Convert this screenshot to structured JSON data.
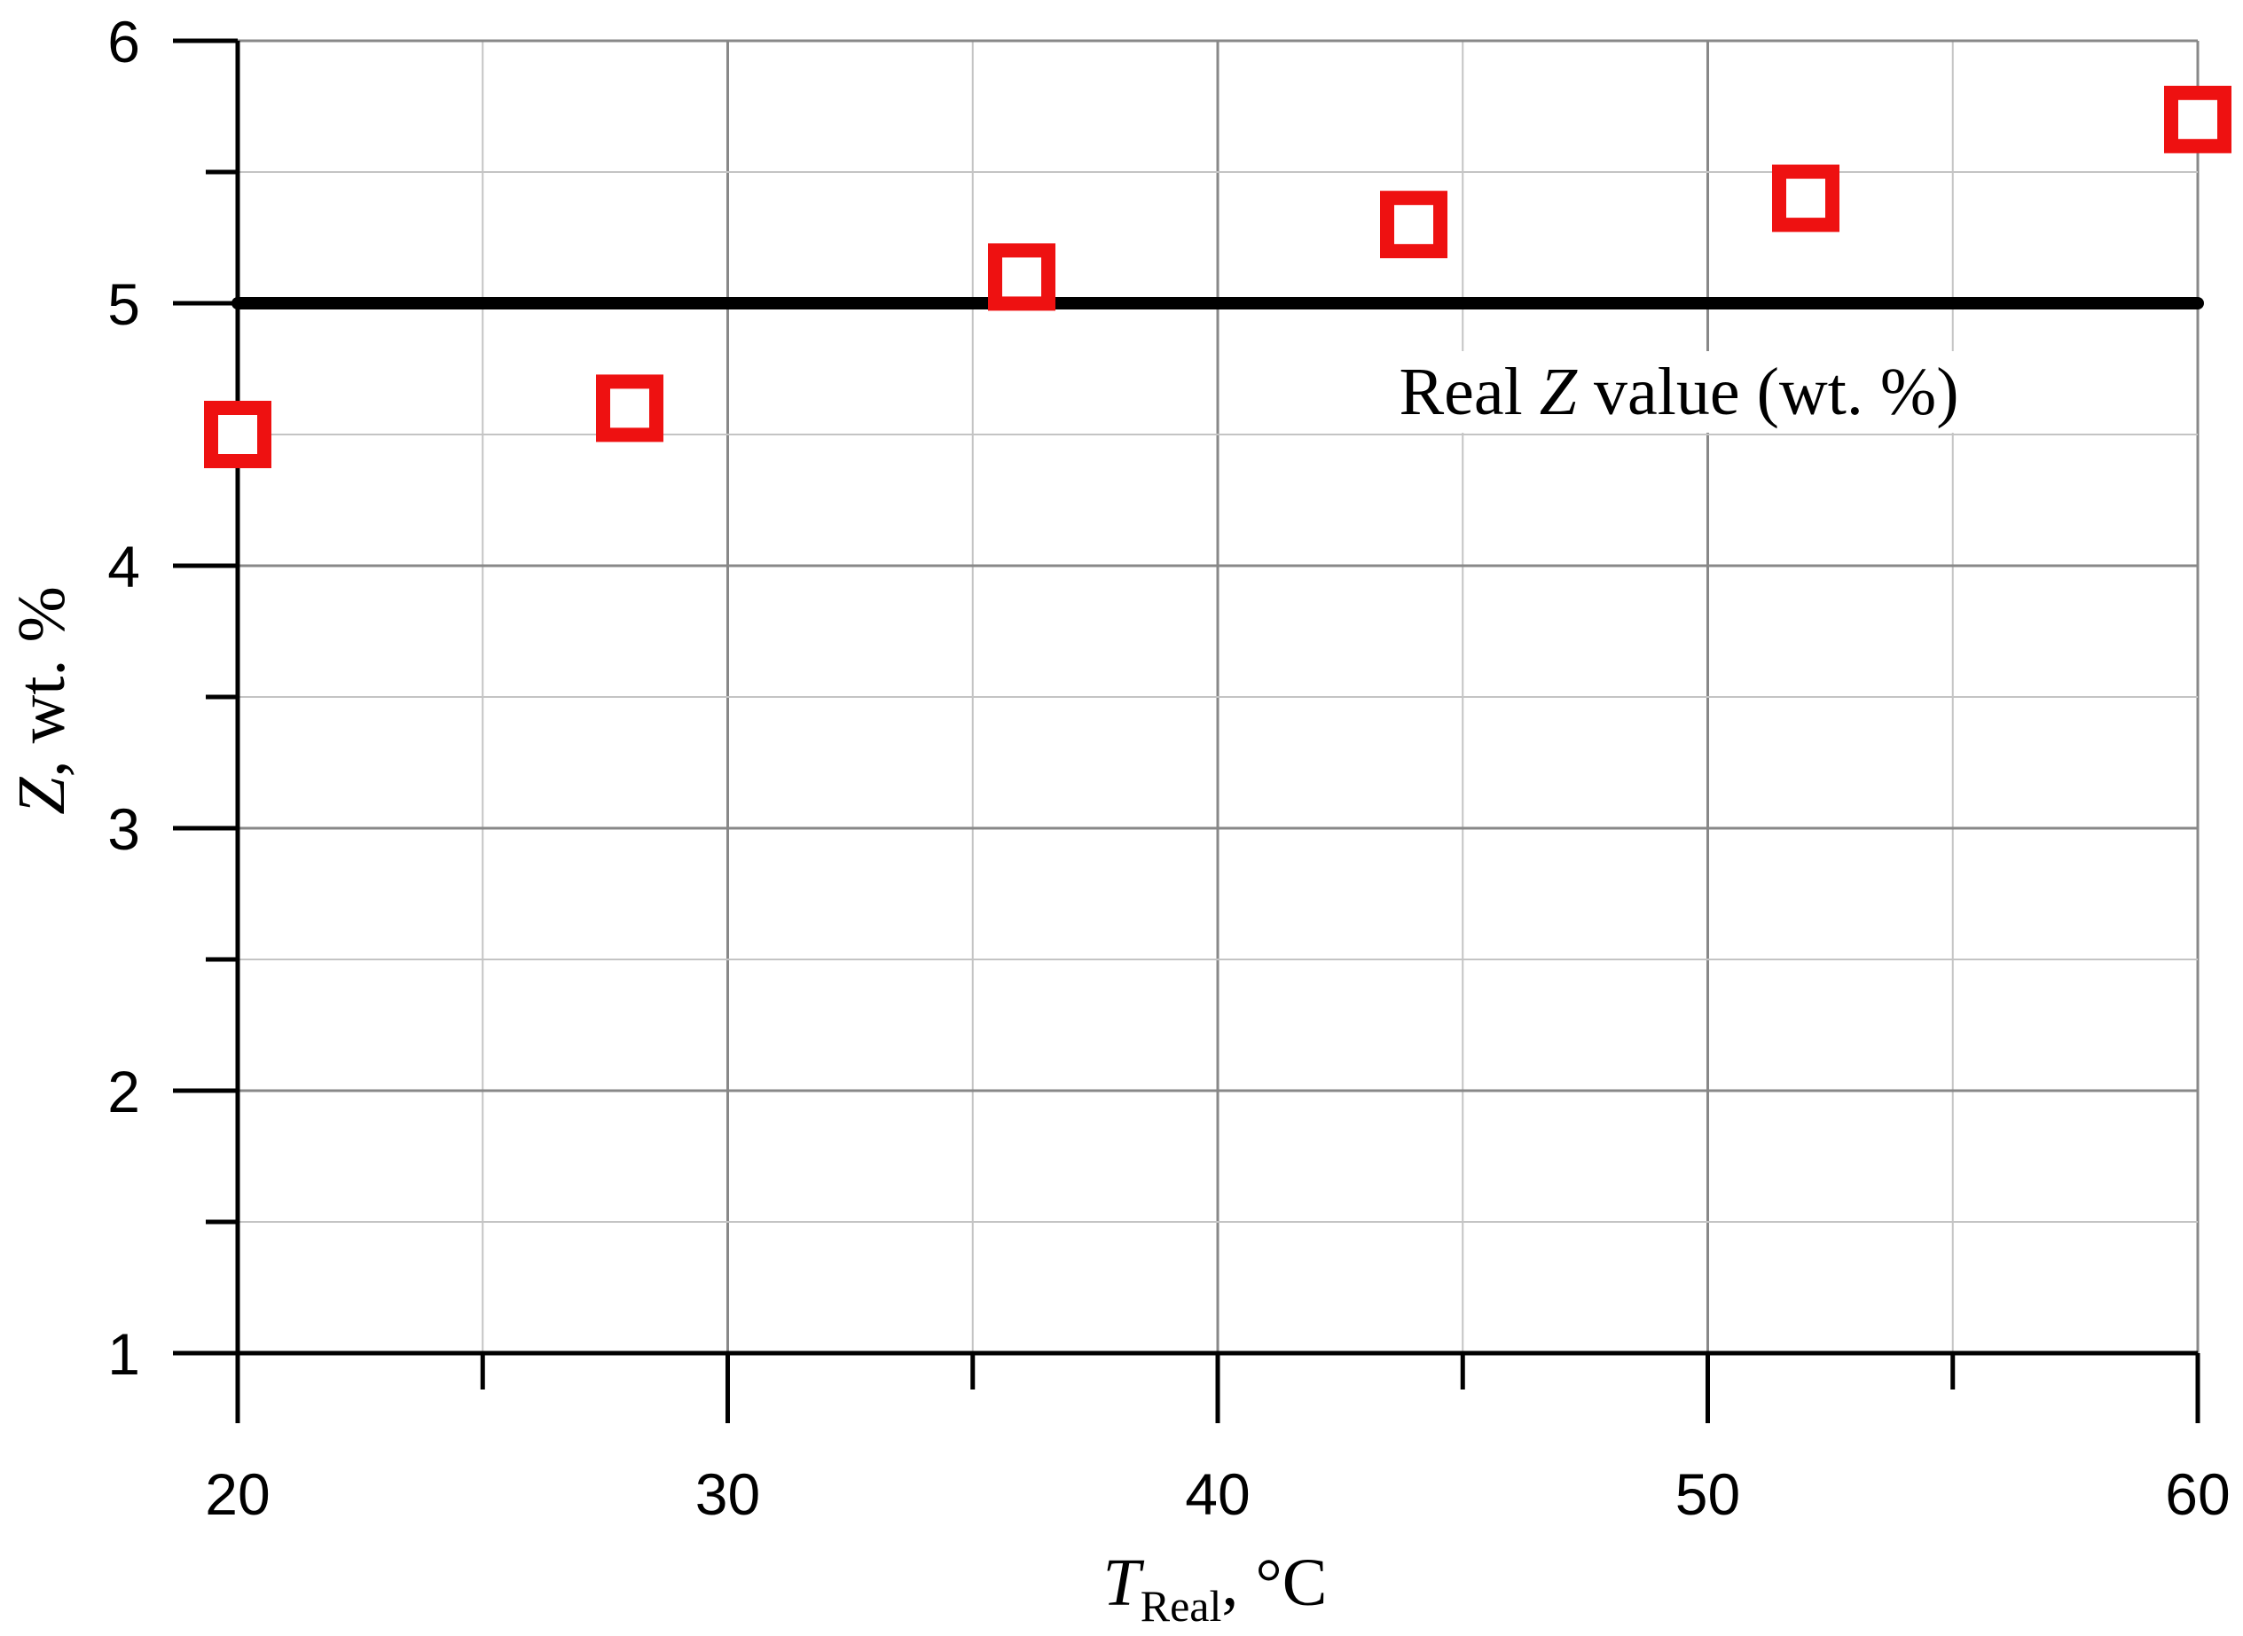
{
  "chart_data": {
    "type": "scatter",
    "x_axis": {
      "label_main": "T",
      "label_sub": "Real",
      "label_unit": ", °C",
      "range": [
        20,
        60
      ],
      "major_ticks": [
        20,
        30,
        40,
        50,
        60
      ],
      "minor_step": 5
    },
    "y_axis": {
      "label_var": "Z",
      "label_unit": ", wt. %",
      "range": [
        1,
        6
      ],
      "major_ticks": [
        1,
        2,
        3,
        4,
        5,
        6
      ],
      "minor_step": 0.5
    },
    "grid": true,
    "series": [
      {
        "marker": "hollow-square",
        "color": "#ee1111",
        "points": [
          {
            "x": 20,
            "y": 4.5
          },
          {
            "x": 28,
            "y": 4.6
          },
          {
            "x": 36,
            "y": 5.1
          },
          {
            "x": 44,
            "y": 5.3
          },
          {
            "x": 52,
            "y": 5.4
          },
          {
            "x": 60,
            "y": 5.7
          }
        ]
      }
    ],
    "reference_line": {
      "y": 5,
      "color": "#000000",
      "annotation_pre": "Real ",
      "annotation_var": "Z",
      "annotation_post": " value (wt. %)"
    }
  }
}
